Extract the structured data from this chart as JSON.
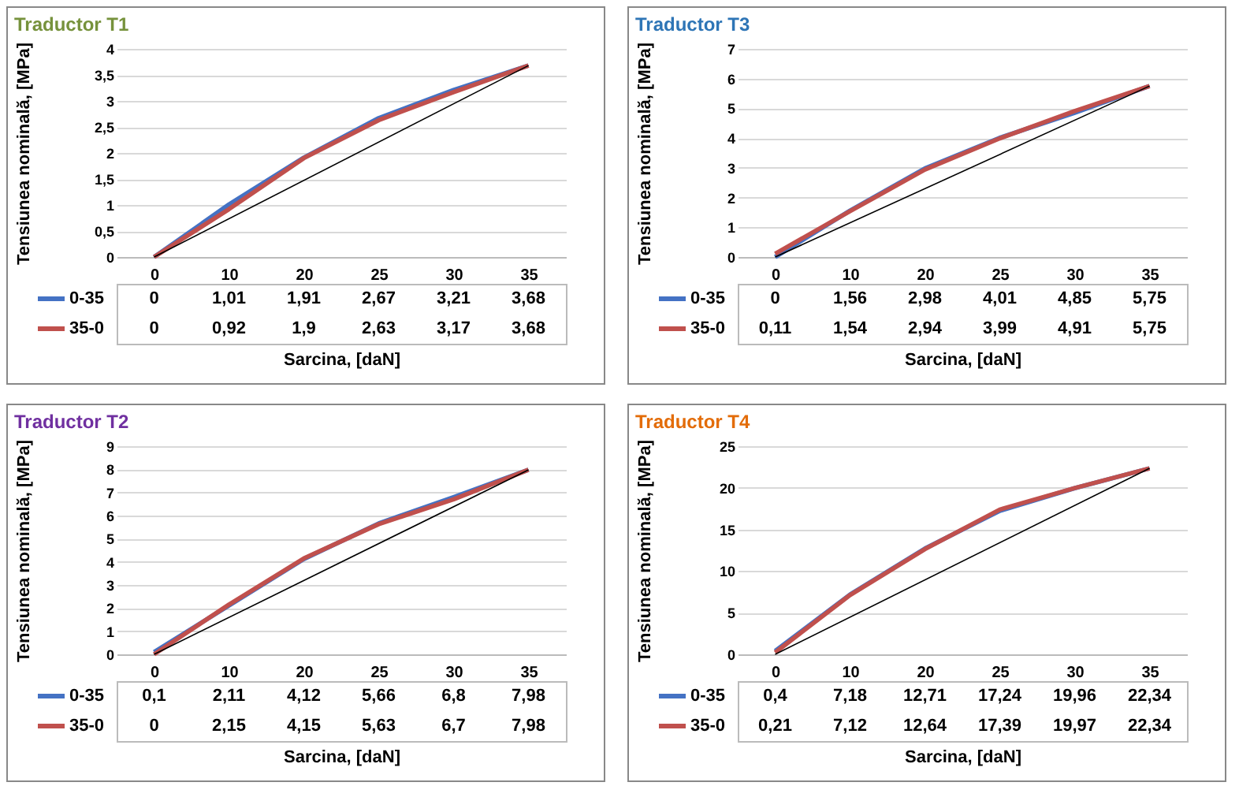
{
  "chart_data": [
    {
      "type": "line",
      "title": "Traductor T1",
      "xlabel": "Sarcina, [daN]",
      "ylabel": "Tensiunea nominală, [MPa]",
      "categories": [
        "0",
        "10",
        "20",
        "25",
        "30",
        "35"
      ],
      "ylim": [
        0,
        4
      ],
      "yticks": [
        0,
        {
          "value": 0.5,
          "label": "0,5"
        },
        1,
        {
          "value": 1.5,
          "label": "1,5"
        },
        2,
        {
          "value": 2.5,
          "label": "2,5"
        },
        3,
        {
          "value": 3.5,
          "label": "3,5"
        },
        4
      ],
      "grid": "y",
      "legend": "bottom left",
      "series": [
        {
          "name": "0-35",
          "color": "#4472c4",
          "values": [
            0,
            1.01,
            1.91,
            2.67,
            3.21,
            3.68
          ],
          "value_labels": [
            "0",
            "1,01",
            "1,91",
            "2,67",
            "3,21",
            "3,68"
          ]
        },
        {
          "name": "35-0",
          "color": "#c0504d",
          "values": [
            0,
            0.92,
            1.9,
            2.63,
            3.17,
            3.68
          ],
          "value_labels": [
            "0",
            "0,92",
            "1,9",
            "2,63",
            "3,17",
            "3,68"
          ]
        },
        {
          "type": "line",
          "color": "#000000",
          "x": [
            "0",
            "35"
          ],
          "values": [
            0,
            3.68
          ]
        }
      ]
    },
    {
      "type": "line",
      "title": "Traductor T3",
      "xlabel": "Sarcina, [daN]",
      "ylabel": "Tensiunea nominală, [MPa]",
      "categories": [
        "0",
        "10",
        "20",
        "25",
        "30",
        "35"
      ],
      "ylim": [
        0,
        7
      ],
      "yticks": [
        0,
        1,
        2,
        3,
        4,
        5,
        6,
        7
      ],
      "grid": "y",
      "legend": "bottom left",
      "series": [
        {
          "name": "0-35",
          "color": "#4472c4",
          "values": [
            0,
            1.56,
            2.98,
            4.01,
            4.85,
            5.75
          ],
          "value_labels": [
            "0",
            "1,56",
            "2,98",
            "4,01",
            "4,85",
            "5,75"
          ]
        },
        {
          "name": "35-0",
          "color": "#c0504d",
          "values": [
            0.11,
            1.54,
            2.94,
            3.99,
            4.91,
            5.75
          ],
          "value_labels": [
            "0,11",
            "1,54",
            "2,94",
            "3,99",
            "4,91",
            "5,75"
          ]
        },
        {
          "type": "line",
          "color": "#000000",
          "x": [
            "0",
            "35"
          ],
          "values": [
            0,
            5.75
          ]
        }
      ]
    },
    {
      "type": "line",
      "title": "Traductor T2",
      "xlabel": "Sarcina, [daN]",
      "ylabel": "Tensiunea nominală, [MPa]",
      "categories": [
        "0",
        "10",
        "20",
        "25",
        "30",
        "35"
      ],
      "ylim": [
        0,
        9
      ],
      "yticks": [
        0,
        1,
        2,
        3,
        4,
        5,
        6,
        7,
        8,
        9
      ],
      "grid": "y",
      "legend": "bottom left",
      "series": [
        {
          "name": "0-35",
          "color": "#4472c4",
          "values": [
            0.1,
            2.11,
            4.12,
            5.66,
            6.8,
            7.98
          ],
          "value_labels": [
            "0,1",
            "2,11",
            "4,12",
            "5,66",
            "6,8",
            "7,98"
          ]
        },
        {
          "name": "35-0",
          "color": "#c0504d",
          "values": [
            0,
            2.15,
            4.15,
            5.63,
            6.7,
            7.98
          ],
          "value_labels": [
            "0",
            "2,15",
            "4,15",
            "5,63",
            "6,7",
            "7,98"
          ]
        },
        {
          "type": "line",
          "color": "#000000",
          "x": [
            "0",
            "35"
          ],
          "values": [
            0,
            7.98
          ]
        }
      ]
    },
    {
      "type": "line",
      "title": "Traductor T4",
      "xlabel": "Sarcina, [daN]",
      "ylabel": "Tensiunea nominală, [MPa]",
      "categories": [
        "0",
        "10",
        "20",
        "25",
        "30",
        "35"
      ],
      "ylim": [
        0,
        25
      ],
      "yticks": [
        0,
        5,
        10,
        15,
        20,
        25
      ],
      "grid": "y",
      "legend": "bottom left",
      "series": [
        {
          "name": "0-35",
          "color": "#4472c4",
          "values": [
            0.4,
            7.18,
            12.71,
            17.24,
            19.96,
            22.34
          ],
          "value_labels": [
            "0,4",
            "7,18",
            "12,71",
            "17,24",
            "19,96",
            "22,34"
          ]
        },
        {
          "name": "35-0",
          "color": "#c0504d",
          "values": [
            0.21,
            7.12,
            12.64,
            17.39,
            19.97,
            22.34
          ],
          "value_labels": [
            "0,21",
            "7,12",
            "12,64",
            "17,39",
            "19,97",
            "22,34"
          ]
        },
        {
          "type": "line",
          "color": "#000000",
          "x": [
            "0",
            "35"
          ],
          "values": [
            0,
            22.34
          ]
        }
      ]
    }
  ]
}
